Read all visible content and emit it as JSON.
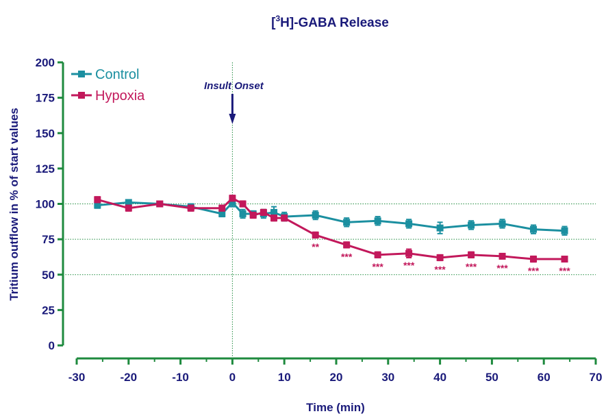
{
  "chart_data": {
    "type": "line",
    "title_main": "H]-GABA Release",
    "title_prefix": "[",
    "title_superscript": "3",
    "xlabel": "Time (min)",
    "ylabel": "Tritium outflow in % of start values",
    "xlim": [
      -30,
      70
    ],
    "ylim": [
      0,
      200
    ],
    "xticks": [
      -30,
      -20,
      -10,
      0,
      10,
      20,
      30,
      40,
      50,
      60,
      70
    ],
    "yticks": [
      0,
      25,
      50,
      75,
      100,
      125,
      150,
      175,
      200
    ],
    "reference_lines_y": [
      50,
      75,
      100
    ],
    "reference_line_x": 0,
    "legend_position": "top-left",
    "annotation": {
      "text": "Insult Onset",
      "x": 0
    },
    "series": [
      {
        "name": "Control",
        "color": "#1b8fa0",
        "x": [
          -26,
          -20,
          -14,
          -8,
          -2,
          0,
          2,
          4,
          6,
          8,
          10,
          16,
          22,
          28,
          34,
          40,
          46,
          52,
          58,
          64
        ],
        "y": [
          99,
          101,
          100,
          98,
          93,
          101,
          93,
          93,
          93,
          94,
          91,
          92,
          87,
          88,
          86,
          83,
          85,
          86,
          82,
          81
        ],
        "err": [
          2,
          1,
          1,
          2,
          2,
          3,
          3,
          2,
          3,
          4,
          3,
          3,
          3,
          3,
          3,
          4,
          3,
          3,
          3,
          3
        ]
      },
      {
        "name": "Hypoxia",
        "color": "#c2185b",
        "x": [
          -26,
          -20,
          -14,
          -8,
          -2,
          0,
          2,
          4,
          6,
          8,
          10,
          16,
          22,
          28,
          34,
          40,
          46,
          52,
          58,
          64
        ],
        "y": [
          103,
          97,
          100,
          97,
          97,
          104,
          100,
          92,
          94,
          90,
          90,
          78,
          71,
          64,
          65,
          62,
          64,
          63,
          61,
          61
        ],
        "err": [
          2,
          2,
          1,
          2,
          2,
          2,
          2,
          2,
          2,
          2,
          2,
          2,
          2,
          2,
          3,
          2,
          2,
          1,
          2,
          1
        ]
      }
    ],
    "significance_markers": [
      {
        "x": 16,
        "label": "**"
      },
      {
        "x": 22,
        "label": "***"
      },
      {
        "x": 28,
        "label": "***"
      },
      {
        "x": 34,
        "label": "***"
      },
      {
        "x": 40,
        "label": "***"
      },
      {
        "x": 46,
        "label": "***"
      },
      {
        "x": 52,
        "label": "***"
      },
      {
        "x": 58,
        "label": "***"
      },
      {
        "x": 64,
        "label": "***"
      }
    ],
    "colors": {
      "axis": "#1e8a3e",
      "text": "#1a1a7a",
      "grid": "#1e8a3e",
      "arrow": "#1a1a7a"
    }
  }
}
